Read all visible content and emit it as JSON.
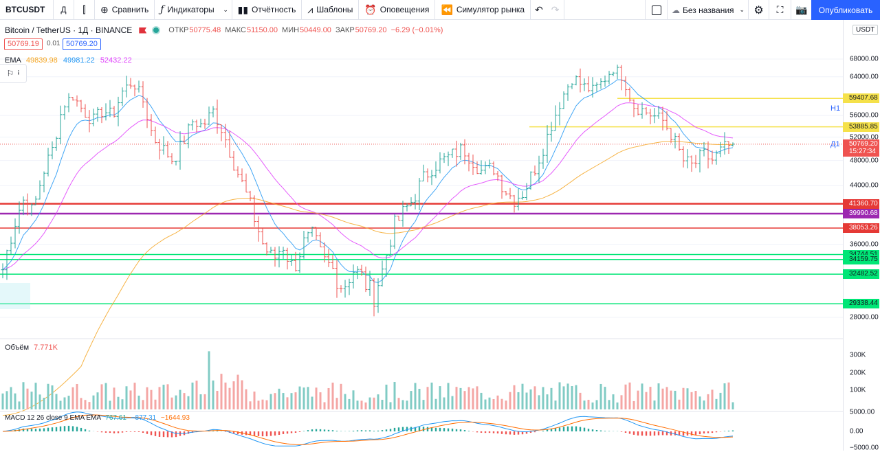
{
  "toolbar": {
    "symbol": "BTCUSDT",
    "interval": "Д",
    "compare": "Сравнить",
    "indicators": "Индикаторы",
    "report": "Отчётность",
    "templates": "Шаблоны",
    "alerts": "Оповещения",
    "replay": "Симулятор рынка",
    "layout_name": "Без названия",
    "publish": "Опубликовать"
  },
  "legend": {
    "title": "Bitcoin / TetherUS · 1Д · BINANCE",
    "open_label": "ОТКР",
    "open": "50775.48",
    "high_label": "МАКС",
    "high": "51150.00",
    "low_label": "МИН",
    "low": "50449.00",
    "close_label": "ЗАКР",
    "close": "50769.20",
    "change": "−6.29 (−0.01%)",
    "sell_price": "50769.19",
    "spread": "0.01",
    "buy_price": "50769.20"
  },
  "ema_legend": {
    "label": "EMA",
    "v1": "49839.98",
    "v1_color": "#f5a623",
    "v2": "49981.22",
    "v2_color": "#2196f3",
    "v3": "52432.22",
    "v3_color": "#e040fb"
  },
  "volume_legend": {
    "label": "Объём",
    "value": "7.771K"
  },
  "macd_legend": {
    "label": "MACD 12 26 close 9 EMA EMA",
    "v1": "767.61",
    "v2": "−877.31",
    "v3": "−1644.93"
  },
  "axis": {
    "currency": "USDT",
    "price_ticks": [
      {
        "label": "68000.00",
        "price": 68000
      },
      {
        "label": "64000.00",
        "price": 64000
      },
      {
        "label": "56000.00",
        "price": 56000
      },
      {
        "label": "52000.00",
        "price": 52000
      },
      {
        "label": "48000.00",
        "price": 48000
      },
      {
        "label": "44000.00",
        "price": 44000
      },
      {
        "label": "36000.00",
        "price": 36000
      },
      {
        "label": "28000.00",
        "price": 28000
      }
    ],
    "volume_ticks": [
      "300K",
      "200K",
      "100K"
    ],
    "macd_ticks": [
      "5000.00",
      "0.00",
      "−5000.00"
    ]
  },
  "levels": [
    {
      "label": "59407.68",
      "price": 59407.68,
      "color": "#f5e14a",
      "text": "#131722"
    },
    {
      "label": "53885.85",
      "price": 53885.85,
      "color": "#f5e14a",
      "text": "#131722"
    },
    {
      "label": "50769.20",
      "price": 50769.2,
      "color": "#ef5350",
      "text": "#ffffff"
    },
    {
      "label": "41360.70",
      "price": 41360.7,
      "color": "#e53935",
      "text": "#ffffff"
    },
    {
      "label": "39990.68",
      "price": 39990.68,
      "color": "#9c27b0",
      "text": "#ffffff"
    },
    {
      "label": "38053.26",
      "price": 38053.26,
      "color": "#e53935",
      "text": "#ffffff"
    },
    {
      "label": "34744.51",
      "price": 34744.51,
      "color": "#00e676",
      "text": "#131722"
    },
    {
      "label": "34159.75",
      "price": 34159.75,
      "color": "#00e676",
      "text": "#131722"
    },
    {
      "label": "32482.52",
      "price": 32482.52,
      "color": "#00e676",
      "text": "#131722"
    },
    {
      "label": "29338.44",
      "price": 29338.44,
      "color": "#00e676",
      "text": "#131722"
    }
  ],
  "countdown": "15:27:34",
  "h1_label": "H1",
  "d1_label": "Д1",
  "colors": {
    "up": "#26a69a",
    "down": "#ef5350",
    "accent": "#2962ff"
  },
  "chart_data": {
    "type": "candlestick",
    "ohlc_close_path": [
      33000,
      38000,
      42000,
      40000,
      46000,
      50000,
      58000,
      60000,
      57000,
      55000,
      57000,
      56000,
      61000,
      63000,
      59000,
      52000,
      50000,
      48000,
      51000,
      55000,
      54000,
      57000,
      53000,
      48000,
      44000,
      40000,
      36000,
      34000,
      36000,
      33000,
      36000,
      37000,
      34000,
      33000,
      31000,
      33000,
      32000,
      30000,
      33000,
      38000,
      40000,
      42000,
      45000,
      47000,
      48000,
      49000,
      50000,
      48000,
      46000,
      47000,
      44000,
      42000,
      43000,
      46000,
      50000,
      55000,
      60000,
      64000,
      62000,
      61000,
      63000,
      66000,
      64000,
      58000,
      57000,
      56000,
      55000,
      52000,
      48000,
      47000,
      49000,
      48000,
      50000,
      50769
    ],
    "ylim": [
      27000,
      72000
    ]
  }
}
